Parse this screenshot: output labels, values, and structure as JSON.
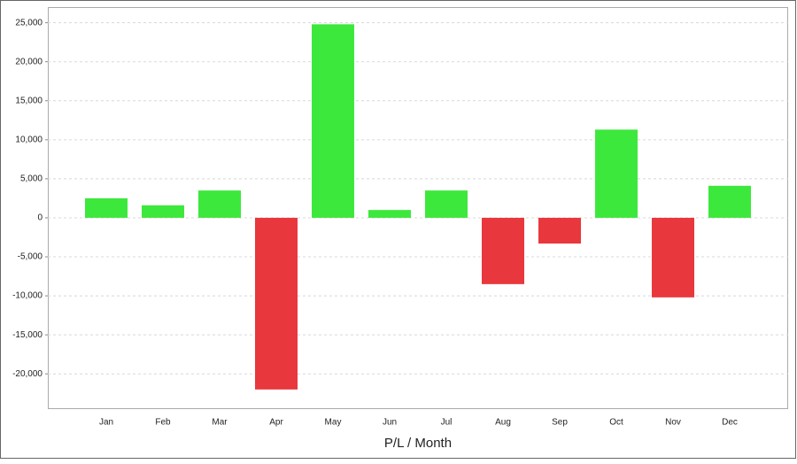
{
  "chart_data": {
    "type": "bar",
    "x_label": "P/L / Month",
    "categories": [
      "Jan",
      "Feb",
      "Mar",
      "Apr",
      "May",
      "Jun",
      "Jul",
      "Aug",
      "Sep",
      "Oct",
      "Nov",
      "Dec"
    ],
    "values": [
      2500,
      1600,
      3500,
      -22000,
      24800,
      1000,
      3500,
      -8500,
      -3300,
      11300,
      -10200,
      4100
    ],
    "positive_color": "#3de83d",
    "negative_color": "#e8383d",
    "ylim": [
      -24400,
      27000
    ],
    "yticks": [
      {
        "value": -20000,
        "label": "-20,000"
      },
      {
        "value": -15000,
        "label": "-15,000"
      },
      {
        "value": -10000,
        "label": "-10,000"
      },
      {
        "value": -5000,
        "label": "-5,000"
      },
      0,
      {
        "value": 5000,
        "label": "5,000"
      },
      {
        "value": 10000,
        "label": "10,000"
      },
      {
        "value": 15000,
        "label": "15,000"
      },
      {
        "value": 20000,
        "label": "20,000"
      },
      {
        "value": 25000,
        "label": "25,000"
      }
    ],
    "grid": true
  }
}
